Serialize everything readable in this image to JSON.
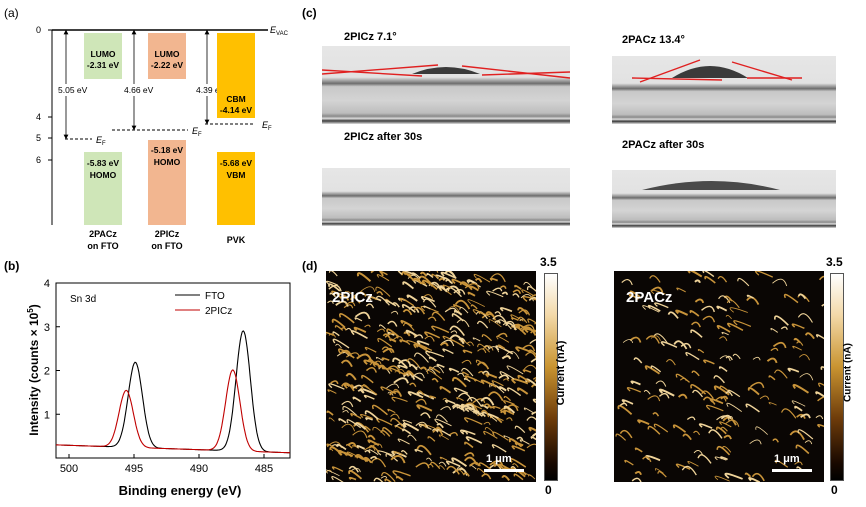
{
  "panel_a": {
    "label": "(a)",
    "evac": "E",
    "evac_sub": "VAC",
    "ef": "E",
    "ef_sub": "F",
    "y_ticks": [
      "0",
      "4",
      "5",
      "6"
    ],
    "gaps": [
      "5.05 eV",
      "4.66 eV",
      "4.39 eV"
    ],
    "boxes": [
      {
        "top_label": "LUMO",
        "top_value": "-2.31 eV",
        "bottom_value": "-5.83 eV",
        "bottom_label": "HOMO",
        "name_line1": "2PACz",
        "name_line2": "on FTO",
        "color": "#cfe6b8"
      },
      {
        "top_label": "LUMO",
        "top_value": "-2.22 eV",
        "bottom_value": "-5.18 eV",
        "bottom_label": "HOMO",
        "name_line1": "2PICz",
        "name_line2": "on FTO",
        "color": "#f2b690"
      },
      {
        "top_label": "CBM",
        "top_value": "-4.14 eV",
        "bottom_value": "-5.68 eV",
        "bottom_label": "VBM",
        "name_line1": "PVK",
        "name_line2": "",
        "color": "#ffc000"
      }
    ]
  },
  "panel_b": {
    "label": "(b)",
    "annotation": "Sn 3d",
    "chart_data": {
      "type": "line",
      "xlabel": "Binding energy (eV)",
      "ylabel": "Intensity (counts × 10",
      "ylabel_sup": "5",
      "ylabel_close": ")",
      "xlim": [
        501,
        483
      ],
      "ylim": [
        0,
        4
      ],
      "x_ticks": [
        "500",
        "495",
        "490",
        "485"
      ],
      "y_ticks": [
        "1",
        "2",
        "3",
        "4"
      ],
      "legend": [
        "FTO",
        "2PICz"
      ],
      "series": [
        {
          "name": "FTO",
          "color": "#000000",
          "peaks": [
            {
              "x": 494.9,
              "y": 2.1
            },
            {
              "x": 486.6,
              "y": 2.9
            }
          ],
          "baseline": 0.3
        },
        {
          "name": "2PICz",
          "color": "#c00000",
          "peaks": [
            {
              "x": 495.6,
              "y": 1.45
            },
            {
              "x": 487.4,
              "y": 2.0
            }
          ],
          "baseline": 0.3
        }
      ]
    }
  },
  "panel_c": {
    "label": "(c)",
    "captions": [
      "2PICz 7.1°",
      "2PACz 13.4°",
      "2PICz after 30s",
      "2PACz after 30s"
    ]
  },
  "panel_d": {
    "label": "(d)",
    "maps": [
      {
        "title": "2PICz",
        "density": "high"
      },
      {
        "title": "2PACz",
        "density": "low"
      }
    ],
    "scale_bar": "1 μm",
    "colorbar_max": "3.5",
    "colorbar_min": "0",
    "colorbar_label": "Current (nA)"
  }
}
